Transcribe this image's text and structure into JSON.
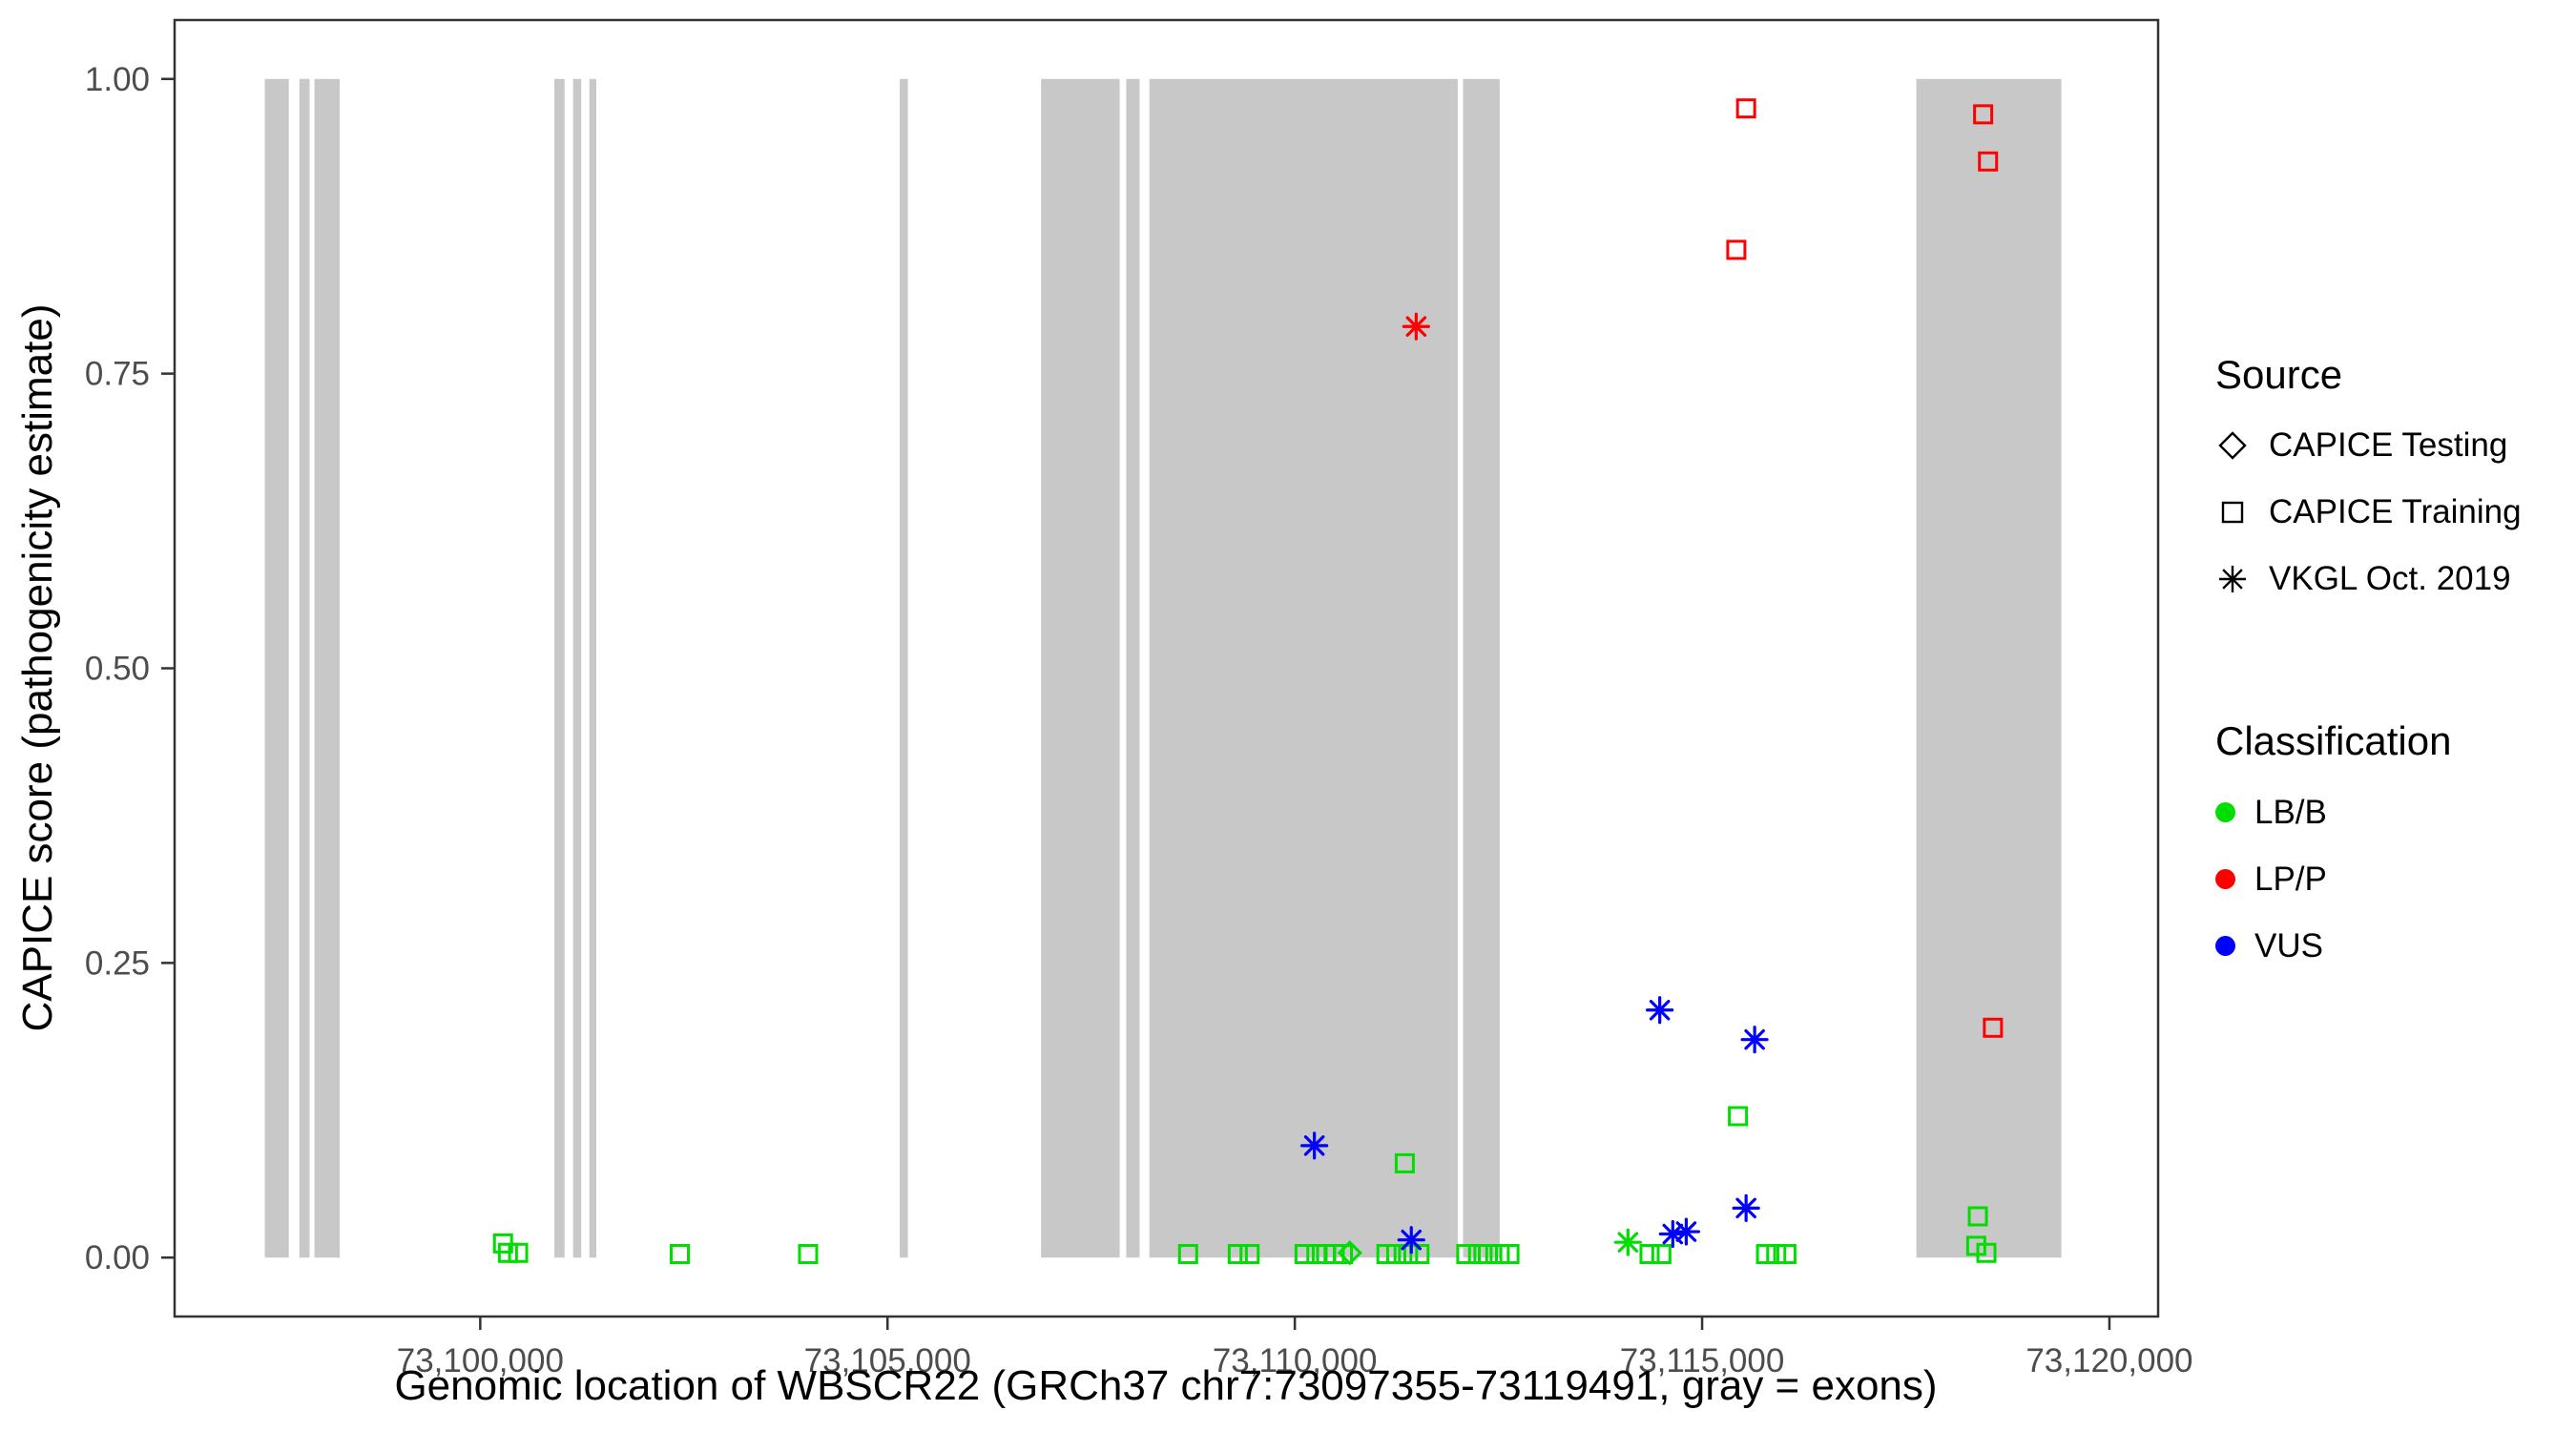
{
  "chart_data": {
    "type": "scatter",
    "title": "",
    "xlabel": "Genomic location of WBSCR22 (GRCh37 chr7:73097355-73119491, gray = exons)",
    "ylabel": "CAPICE score (pathogenicity estimate)",
    "xlim": [
      73096248,
      73120598
    ],
    "ylim": [
      -0.05,
      1.05
    ],
    "grid": "off",
    "panel_background": "#FFFFFF",
    "panel_border_color": "#333333",
    "tick_color": "#333333",
    "tick_label_color": "#4D4D4D",
    "exon_color": "#C8C8C8",
    "exon_note": "gray = exons",
    "x_ticks": [
      {
        "value": 73100000,
        "label": "73,100,000"
      },
      {
        "value": 73105000,
        "label": "73,105,000"
      },
      {
        "value": 73110000,
        "label": "73,110,000"
      },
      {
        "value": 73115000,
        "label": "73,115,000"
      },
      {
        "value": 73120000,
        "label": "73,120,000"
      }
    ],
    "y_ticks": [
      {
        "value": 0.0,
        "label": "0.00"
      },
      {
        "value": 0.25,
        "label": "0.25"
      },
      {
        "value": 0.5,
        "label": "0.50"
      },
      {
        "value": 0.75,
        "label": "0.75"
      },
      {
        "value": 1.0,
        "label": "1.00"
      }
    ],
    "exons": [
      [
        73097355,
        73097650
      ],
      [
        73097780,
        73097905
      ],
      [
        73097965,
        73098275
      ],
      [
        73100910,
        73101035
      ],
      [
        73101140,
        73101240
      ],
      [
        73101340,
        73101425
      ],
      [
        73105150,
        73105250
      ],
      [
        73106885,
        73107850
      ],
      [
        73107930,
        73108095
      ],
      [
        73108215,
        73112000
      ],
      [
        73112065,
        73112515
      ],
      [
        73117630,
        73119410
      ]
    ],
    "colors": {
      "LB/B": "#00DD00",
      "LP/P": "#FF0000",
      "VUS": "#0000FF"
    },
    "source_shapes": {
      "CAPICE Testing": "diamond",
      "CAPICE Training": "square",
      "VKGL Oct. 2019": "asterisk"
    },
    "points": [
      {
        "x": 73100280,
        "y": 0.012,
        "source": "CAPICE Training",
        "classification": "LB/B"
      },
      {
        "x": 73100340,
        "y": 0.004,
        "source": "CAPICE Training",
        "classification": "LB/B"
      },
      {
        "x": 73100465,
        "y": 0.004,
        "source": "CAPICE Training",
        "classification": "LB/B"
      },
      {
        "x": 73102450,
        "y": 0.003,
        "source": "CAPICE Training",
        "classification": "LB/B"
      },
      {
        "x": 73104025,
        "y": 0.003,
        "source": "CAPICE Training",
        "classification": "LB/B"
      },
      {
        "x": 73108690,
        "y": 0.003,
        "source": "CAPICE Training",
        "classification": "LB/B"
      },
      {
        "x": 73109300,
        "y": 0.003,
        "source": "CAPICE Training",
        "classification": "LB/B"
      },
      {
        "x": 73109445,
        "y": 0.003,
        "source": "CAPICE Training",
        "classification": "LB/B"
      },
      {
        "x": 73110120,
        "y": 0.003,
        "source": "CAPICE Training",
        "classification": "LB/B"
      },
      {
        "x": 73110265,
        "y": 0.003,
        "source": "CAPICE Training",
        "classification": "LB/B"
      },
      {
        "x": 73110385,
        "y": 0.003,
        "source": "CAPICE Training",
        "classification": "LB/B"
      },
      {
        "x": 73110490,
        "y": 0.003,
        "source": "CAPICE Training",
        "classification": "LB/B"
      },
      {
        "x": 73110590,
        "y": 0.003,
        "source": "CAPICE Training",
        "classification": "LB/B"
      },
      {
        "x": 73110675,
        "y": 0.004,
        "source": "CAPICE Testing",
        "classification": "LB/B"
      },
      {
        "x": 73111125,
        "y": 0.003,
        "source": "CAPICE Training",
        "classification": "LB/B"
      },
      {
        "x": 73111245,
        "y": 0.003,
        "source": "CAPICE Training",
        "classification": "LB/B"
      },
      {
        "x": 73111390,
        "y": 0.003,
        "source": "CAPICE Training",
        "classification": "LB/B"
      },
      {
        "x": 73111530,
        "y": 0.003,
        "source": "CAPICE Training",
        "classification": "LB/B"
      },
      {
        "x": 73112105,
        "y": 0.003,
        "source": "CAPICE Training",
        "classification": "LB/B"
      },
      {
        "x": 73112250,
        "y": 0.003,
        "source": "CAPICE Training",
        "classification": "LB/B"
      },
      {
        "x": 73112370,
        "y": 0.003,
        "source": "CAPICE Training",
        "classification": "LB/B"
      },
      {
        "x": 73112515,
        "y": 0.003,
        "source": "CAPICE Training",
        "classification": "LB/B"
      },
      {
        "x": 73112635,
        "y": 0.003,
        "source": "CAPICE Training",
        "classification": "LB/B"
      },
      {
        "x": 73114355,
        "y": 0.003,
        "source": "CAPICE Training",
        "classification": "LB/B"
      },
      {
        "x": 73114500,
        "y": 0.003,
        "source": "CAPICE Training",
        "classification": "LB/B"
      },
      {
        "x": 73115785,
        "y": 0.003,
        "source": "CAPICE Training",
        "classification": "LB/B"
      },
      {
        "x": 73115910,
        "y": 0.003,
        "source": "CAPICE Training",
        "classification": "LB/B"
      },
      {
        "x": 73116035,
        "y": 0.003,
        "source": "CAPICE Training",
        "classification": "LB/B"
      },
      {
        "x": 73118365,
        "y": 0.01,
        "source": "CAPICE Training",
        "classification": "LB/B"
      },
      {
        "x": 73118490,
        "y": 0.004,
        "source": "CAPICE Training",
        "classification": "LB/B"
      },
      {
        "x": 73118385,
        "y": 0.035,
        "source": "CAPICE Training",
        "classification": "LB/B"
      },
      {
        "x": 73111350,
        "y": 0.08,
        "source": "CAPICE Training",
        "classification": "LB/B"
      },
      {
        "x": 73115440,
        "y": 0.12,
        "source": "CAPICE Training",
        "classification": "LB/B"
      },
      {
        "x": 73114090,
        "y": 0.013,
        "source": "VKGL Oct. 2019",
        "classification": "LB/B"
      },
      {
        "x": 73110240,
        "y": 0.095,
        "source": "VKGL Oct. 2019",
        "classification": "VUS"
      },
      {
        "x": 73114480,
        "y": 0.21,
        "source": "VKGL Oct. 2019",
        "classification": "VUS"
      },
      {
        "x": 73115645,
        "y": 0.185,
        "source": "VKGL Oct. 2019",
        "classification": "VUS"
      },
      {
        "x": 73115540,
        "y": 0.042,
        "source": "VKGL Oct. 2019",
        "classification": "VUS"
      },
      {
        "x": 73114640,
        "y": 0.02,
        "source": "VKGL Oct. 2019",
        "classification": "VUS"
      },
      {
        "x": 73114805,
        "y": 0.022,
        "source": "VKGL Oct. 2019",
        "classification": "VUS"
      },
      {
        "x": 73111430,
        "y": 0.015,
        "source": "VKGL Oct. 2019",
        "classification": "VUS"
      },
      {
        "x": 73111490,
        "y": 0.79,
        "source": "VKGL Oct. 2019",
        "classification": "LP/P"
      },
      {
        "x": 73115540,
        "y": 0.975,
        "source": "CAPICE Training",
        "classification": "LP/P"
      },
      {
        "x": 73115420,
        "y": 0.855,
        "source": "CAPICE Training",
        "classification": "LP/P"
      },
      {
        "x": 73118450,
        "y": 0.97,
        "source": "CAPICE Training",
        "classification": "LP/P"
      },
      {
        "x": 73118510,
        "y": 0.93,
        "source": "CAPICE Training",
        "classification": "LP/P"
      },
      {
        "x": 73118570,
        "y": 0.195,
        "source": "CAPICE Training",
        "classification": "LP/P"
      }
    ]
  },
  "legend": {
    "source": {
      "title": "Source",
      "items": [
        {
          "label": "CAPICE Testing",
          "shape": "diamond"
        },
        {
          "label": "CAPICE Training",
          "shape": "square"
        },
        {
          "label": "VKGL Oct. 2019",
          "shape": "asterisk"
        }
      ]
    },
    "classification": {
      "title": "Classification",
      "items": [
        {
          "label": "LB/B",
          "color": "#00DD00"
        },
        {
          "label": "LP/P",
          "color": "#FF0000"
        },
        {
          "label": "VUS",
          "color": "#0000FF"
        }
      ]
    }
  }
}
